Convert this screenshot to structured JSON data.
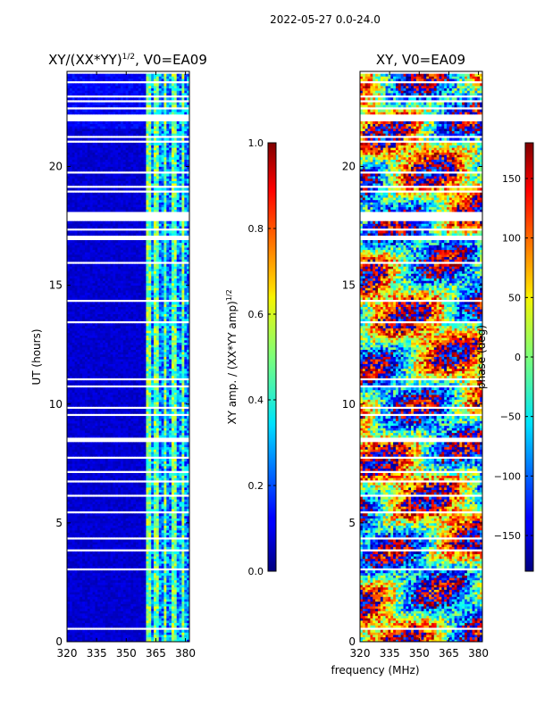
{
  "figure": {
    "suptitle": "2022-05-27 0.0-24.0",
    "xlabel": "frequency (MHz)"
  },
  "chart_data": [
    {
      "type": "heatmap",
      "title": "XY/(XX*YY)^{1/2}, V0=EA09",
      "title_main": "XY/(XX*YY)",
      "title_sup": "1/2",
      "title_rest": ", V0=EA09",
      "xlabel": "frequency (MHz)",
      "ylabel": "UT (hours)",
      "xlim": [
        320,
        382
      ],
      "ylim": [
        0,
        24
      ],
      "xticks": [
        320,
        335,
        350,
        365,
        380
      ],
      "yticks": [
        0,
        5,
        10,
        15,
        20
      ],
      "colorbar": {
        "label": "XY amp. / (XX*YY amp)^{1/2}",
        "label_main": "XY amp. / (XX*YY amp)",
        "label_sup": "1/2",
        "range": [
          0.0,
          1.0
        ],
        "ticks": [
          0.0,
          0.2,
          0.4,
          0.6,
          0.8,
          1.0
        ],
        "tick_labels": [
          "0.0",
          "0.2",
          "0.4",
          "0.6",
          "0.8",
          "1.0"
        ],
        "colormap": "jet"
      },
      "description_values": {
        "low_freq_band_mhz": [
          320,
          360
        ],
        "low_freq_level": 0.05,
        "high_freq_band_mhz": [
          360,
          382
        ],
        "high_freq_level_range": [
          0.1,
          0.6
        ]
      }
    },
    {
      "type": "heatmap",
      "title": "XY, V0=EA09",
      "xlabel": "frequency (MHz)",
      "ylabel": "",
      "xlim": [
        320,
        382
      ],
      "ylim": [
        0,
        24
      ],
      "xticks": [
        320,
        335,
        350,
        365,
        380
      ],
      "yticks": [
        0,
        5,
        10,
        15,
        20
      ],
      "colorbar": {
        "label": "phase (deg)",
        "range": [
          -180,
          180
        ],
        "ticks": [
          -150,
          -100,
          -50,
          0,
          50,
          100,
          150
        ],
        "tick_labels": [
          "−150",
          "−100",
          "−50",
          "0",
          "50",
          "100",
          "150"
        ],
        "colormap": "jet"
      }
    }
  ],
  "colors": {
    "jet_low": "#00007f",
    "jet_mid": "#7fff7f",
    "jet_high": "#7f0000",
    "background": "#ffffff"
  }
}
